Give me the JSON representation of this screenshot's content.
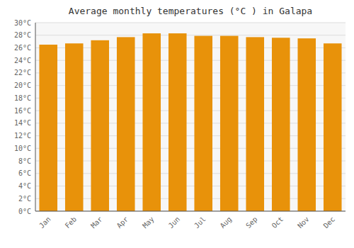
{
  "chart_data": {
    "type": "bar",
    "title": "Average monthly temperatures (°C ) in Galapa",
    "categories": [
      "Jan",
      "Feb",
      "Mar",
      "Apr",
      "May",
      "Jun",
      "Jul",
      "Aug",
      "Sep",
      "Oct",
      "Nov",
      "Dec"
    ],
    "values": [
      26.5,
      26.7,
      27.2,
      27.7,
      28.3,
      28.3,
      27.9,
      27.9,
      27.7,
      27.6,
      27.5,
      26.7
    ],
    "color": "#E8920A",
    "ylim": [
      0,
      30
    ],
    "yticks": [
      {
        "value": 0,
        "label": "0°C"
      },
      {
        "value": 2,
        "label": "2°C"
      },
      {
        "value": 4,
        "label": "4°C"
      },
      {
        "value": 6,
        "label": "6°C"
      },
      {
        "value": 8,
        "label": "8°C"
      },
      {
        "value": 10,
        "label": "10°C"
      },
      {
        "value": 12,
        "label": "12°C"
      },
      {
        "value": 14,
        "label": "14°C"
      },
      {
        "value": 16,
        "label": "16°C"
      },
      {
        "value": 18,
        "label": "18°C"
      },
      {
        "value": 20,
        "label": "20°C"
      },
      {
        "value": 22,
        "label": "22°C"
      },
      {
        "value": 24,
        "label": "24°C"
      },
      {
        "value": 26,
        "label": "26°C"
      },
      {
        "value": 28,
        "label": "28°C"
      },
      {
        "value": 30,
        "label": "30°C"
      }
    ],
    "grid": true
  }
}
